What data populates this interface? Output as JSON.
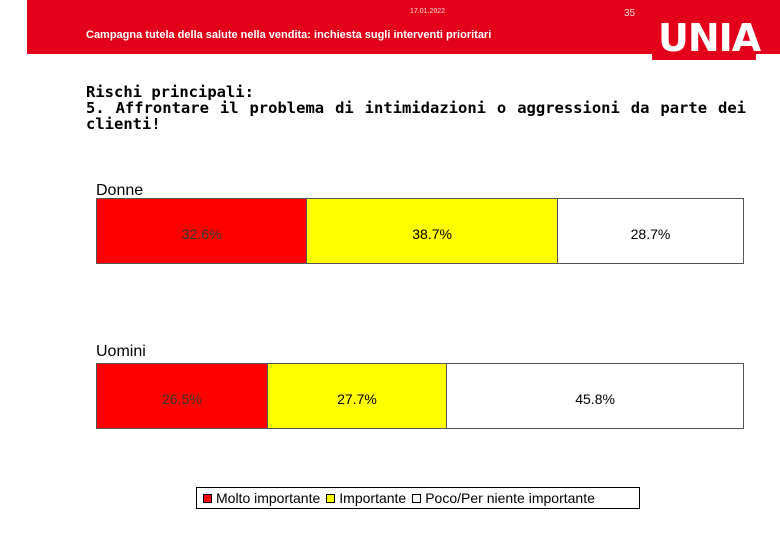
{
  "header": {
    "date": "17.01.2022",
    "page_number": "35",
    "subtitle": "Campagna tutela della salute nella vendita: inchiesta sugli interventi prioritari",
    "logo_text": "UNIA"
  },
  "colors": {
    "brand_red": "#e2001a",
    "molto": "#ff0000",
    "importante": "#ffff00",
    "poco": "#ffffff"
  },
  "chart_data": {
    "type": "bar",
    "orientation": "horizontal-stacked-100",
    "title": "Rischi principali:\n5. Affrontare il problema di intimidazioni o aggressioni da parte dei clienti!",
    "categories": [
      "Donne",
      "Uomini"
    ],
    "series": [
      {
        "name": "Molto importante",
        "values": [
          32.6,
          26.5
        ],
        "labels": [
          "32.6%",
          "26.5%"
        ]
      },
      {
        "name": "Importante",
        "values": [
          38.7,
          27.7
        ],
        "labels": [
          "38.7%",
          "27.7%"
        ]
      },
      {
        "name": "Poco/Per niente importante",
        "values": [
          28.7,
          45.8
        ],
        "labels": [
          "28.7%",
          "45.8%"
        ]
      }
    ],
    "unit": "%",
    "xlim": [
      0,
      100
    ],
    "legend_position": "bottom"
  }
}
